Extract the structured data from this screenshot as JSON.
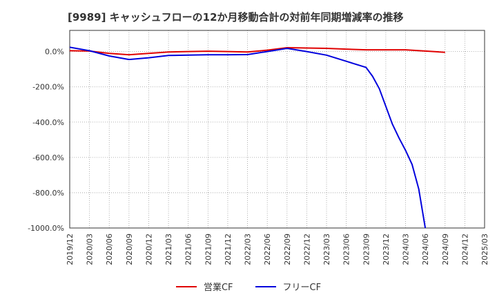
{
  "chart_data": {
    "type": "line",
    "title": "[9989]  キャッシュフローの12か月移動合計の対前年同期増減率の推移",
    "x": [
      "2019/12",
      "2020/03",
      "2020/06",
      "2020/09",
      "2020/12",
      "2021/03",
      "2021/06",
      "2021/09",
      "2021/12",
      "2022/03",
      "2022/06",
      "2022/09",
      "2022/12",
      "2023/03",
      "2023/06",
      "2023/09",
      "2023/12",
      "2024/03",
      "2024/06",
      "2024/09",
      "2024/12",
      "2025/03"
    ],
    "ylim": [
      -1000,
      120
    ],
    "yticks": [
      0,
      -200,
      -400,
      -600,
      -800,
      -1000
    ],
    "ytick_labels": [
      "0.0%",
      "-200.0%",
      "-400.0%",
      "-600.0%",
      "-800.0%",
      "-1000.0%"
    ],
    "series": [
      {
        "name": "営業CF",
        "color": "#e00000",
        "points": [
          [
            0,
            5
          ],
          [
            1,
            3
          ],
          [
            2,
            -10
          ],
          [
            3,
            -18
          ],
          [
            4,
            -10
          ],
          [
            5,
            -2
          ],
          [
            6,
            0
          ],
          [
            7,
            2
          ],
          [
            8,
            0
          ],
          [
            9,
            -2
          ],
          [
            10,
            8
          ],
          [
            11,
            22
          ],
          [
            12,
            20
          ],
          [
            13,
            18
          ],
          [
            14,
            14
          ],
          [
            15,
            10
          ],
          [
            16,
            10
          ],
          [
            17,
            10
          ],
          [
            18,
            3
          ],
          [
            19,
            -4
          ]
        ]
      },
      {
        "name": "フリーCF",
        "color": "#0000dd",
        "points": [
          [
            0,
            25
          ],
          [
            1,
            5
          ],
          [
            2,
            -25
          ],
          [
            3,
            -45
          ],
          [
            4,
            -35
          ],
          [
            5,
            -22
          ],
          [
            6,
            -20
          ],
          [
            7,
            -18
          ],
          [
            8,
            -18
          ],
          [
            9,
            -17
          ],
          [
            10,
            0
          ],
          [
            11,
            18
          ],
          [
            12,
            0
          ],
          [
            13,
            -20
          ],
          [
            14,
            -55
          ],
          [
            15,
            -90
          ],
          [
            15.33,
            -140
          ],
          [
            15.67,
            -210
          ],
          [
            16,
            -310
          ],
          [
            16.33,
            -410
          ],
          [
            16.67,
            -490
          ],
          [
            17,
            -560
          ],
          [
            17.33,
            -640
          ],
          [
            17.67,
            -780
          ],
          [
            18,
            -1000
          ]
        ]
      }
    ]
  }
}
